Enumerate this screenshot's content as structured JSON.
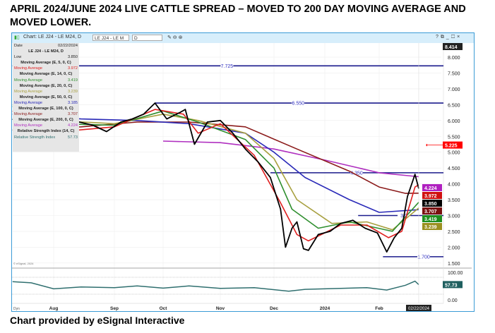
{
  "title": "APRIL 2024/JUNE 2024 LIVE CATTLE SPREAD –   MOVED TO 200 DAY MOVING AVERAGE AND MOVED LOWER.",
  "footer": "Chart provided by eSignal Interactive",
  "window": {
    "chart_label": "Chart: LE J24 - LE M24, D",
    "symbol_field": "LE J24 - LE M",
    "interval_field": "D",
    "controls": [
      "?",
      "⧉",
      "_",
      "☐",
      "×"
    ],
    "dyn_label": "Dyn",
    "copyright": "© eSignal, 2024"
  },
  "legend": {
    "date_label": "Date",
    "date_value": "02/22/2024",
    "symbol": "LE J24 - LE M24, D",
    "low_label": "Low",
    "low_value": "3.850",
    "studies": [
      {
        "header": "Moving Average (E, 5, 0, C)",
        "label": "Moving Average",
        "value": "3.972",
        "color": "#e02020"
      },
      {
        "header": "Moving Average (E, 14, 0, C)",
        "label": "Moving Average",
        "value": "3.419",
        "color": "#2f8f2f"
      },
      {
        "header": "Moving Average (E, 20, 0, C)",
        "label": "Moving Average",
        "value": "3.239",
        "color": "#a8a040"
      },
      {
        "header": "Moving Average (E, 50, 0, C)",
        "label": "Moving Average",
        "value": "3.185",
        "color": "#2a2ab8"
      },
      {
        "header": "Moving Average (E, 100, 0, C)",
        "label": "Moving Average",
        "value": "3.707",
        "color": "#8b1a1a"
      },
      {
        "header": "Moving Average (E, 200, 0, C)",
        "label": "Moving Average",
        "value": "4.224",
        "color": "#b030c0"
      },
      {
        "header": "Relative Strength Index (14, C)",
        "label": "Relative Strength Index",
        "value": "57.73",
        "color": "#2f6f6f"
      }
    ]
  },
  "chart_data": {
    "type": "line",
    "ylim": [
      1.4,
      8.6
    ],
    "rsi_ylim": [
      0,
      100
    ],
    "grid": true,
    "y_ticks": [
      "8.000",
      "7.500",
      "7.000",
      "6.500",
      "6.000",
      "5.500",
      "5.000",
      "4.500",
      "4.000",
      "3.500",
      "3.000",
      "2.500",
      "2.000",
      "1.500"
    ],
    "rsi_ticks": [
      "100.00",
      "0.00"
    ],
    "x_ticks": [
      "Aug",
      "Sep",
      "Oct",
      "Nov",
      "Dec",
      "2024",
      "Feb"
    ],
    "last_date_label": "02/22/2024",
    "top_tag": "8.414",
    "price": {
      "color": "#000000",
      "x": [
        "2023-07-10",
        "2023-07-17",
        "2023-07-24",
        "2023-07-31",
        "2023-08-07",
        "2023-08-14",
        "2023-08-21",
        "2023-08-28",
        "2023-09-05",
        "2023-09-12",
        "2023-09-19",
        "2023-09-26",
        "2023-10-03",
        "2023-10-10",
        "2023-10-13",
        "2023-10-18",
        "2023-10-25",
        "2023-11-01",
        "2023-11-08",
        "2023-11-15",
        "2023-11-22",
        "2023-11-29",
        "2023-12-05",
        "2023-12-08",
        "2023-12-12",
        "2023-12-15",
        "2023-12-19",
        "2023-12-22",
        "2023-12-28",
        "2024-01-04",
        "2024-01-10",
        "2024-01-17",
        "2024-01-24",
        "2024-01-31",
        "2024-02-05",
        "2024-02-09",
        "2024-02-13",
        "2024-02-16",
        "2024-02-20",
        "2024-02-22"
      ],
      "y": [
        6.05,
        5.7,
        5.85,
        5.55,
        5.75,
        5.95,
        5.85,
        5.65,
        5.95,
        6.05,
        6.2,
        6.55,
        6.05,
        6.25,
        6.35,
        5.25,
        5.95,
        6.0,
        5.6,
        5.1,
        4.7,
        4.2,
        3.2,
        2.0,
        2.6,
        2.8,
        1.95,
        1.9,
        2.4,
        2.5,
        2.75,
        2.85,
        2.6,
        2.45,
        1.85,
        2.3,
        2.6,
        3.6,
        4.3,
        3.85
      ]
    },
    "series": [
      {
        "name": "Moving Average (E, 5, 0, C)",
        "color": "#e02020",
        "x": [
          "2023-07-10",
          "2023-07-25",
          "2023-08-05",
          "2023-09-01",
          "2023-09-26",
          "2023-10-12",
          "2023-10-20",
          "2023-11-01",
          "2023-11-20",
          "2023-12-05",
          "2023-12-15",
          "2023-12-22",
          "2024-01-10",
          "2024-01-25",
          "2024-02-06",
          "2024-02-13",
          "2024-02-20",
          "2024-02-22"
        ],
        "y": [
          6.3,
          5.8,
          5.65,
          5.8,
          6.35,
          6.2,
          5.6,
          5.9,
          4.9,
          3.4,
          2.4,
          2.2,
          2.7,
          2.7,
          2.3,
          2.5,
          3.9,
          3.972
        ]
      },
      {
        "name": "Moving Average (E, 14, 0, C)",
        "color": "#2f8f2f",
        "x": [
          "2023-07-10",
          "2023-08-01",
          "2023-09-01",
          "2023-10-01",
          "2023-10-20",
          "2023-11-15",
          "2023-12-01",
          "2023-12-12",
          "2023-12-28",
          "2024-01-15",
          "2024-02-08",
          "2024-02-22"
        ],
        "y": [
          6.45,
          5.9,
          5.85,
          6.3,
          5.95,
          5.4,
          4.5,
          3.2,
          2.6,
          2.8,
          2.5,
          3.419
        ]
      },
      {
        "name": "Moving Average (E, 20, 0, C)",
        "color": "#a8a040",
        "x": [
          "2023-07-10",
          "2023-08-01",
          "2023-09-01",
          "2023-10-01",
          "2023-10-20",
          "2023-11-15",
          "2023-12-01",
          "2023-12-15",
          "2024-01-05",
          "2024-01-25",
          "2024-02-08",
          "2024-02-22"
        ],
        "y": [
          6.5,
          6.0,
          5.9,
          6.2,
          6.0,
          5.6,
          4.8,
          3.5,
          2.75,
          2.8,
          2.55,
          3.239
        ]
      },
      {
        "name": "Moving Average (E, 50, 0, C)",
        "color": "#2a2ab8",
        "x": [
          "2023-07-10",
          "2023-08-15",
          "2023-09-15",
          "2023-10-15",
          "2023-11-15",
          "2023-12-01",
          "2023-12-20",
          "2024-01-15",
          "2024-02-01",
          "2024-02-22"
        ],
        "y": [
          6.2,
          6.05,
          6.0,
          5.9,
          5.6,
          5.0,
          4.2,
          3.5,
          3.1,
          3.185
        ]
      },
      {
        "name": "Moving Average (E, 100, 0, C)",
        "color": "#8b1a1a",
        "x": [
          "2023-07-10",
          "2023-08-15",
          "2023-09-15",
          "2023-10-15",
          "2023-11-15",
          "2023-12-15",
          "2024-01-15",
          "2024-02-01",
          "2024-02-15",
          "2024-02-22"
        ],
        "y": [
          5.7,
          5.8,
          5.95,
          5.95,
          5.8,
          5.1,
          4.4,
          3.9,
          3.7,
          3.707
        ]
      },
      {
        "name": "Moving Average (E, 200, 0, C)",
        "color": "#b030c0",
        "x": [
          "2023-10-01",
          "2023-11-01",
          "2023-12-01",
          "2024-01-01",
          "2024-02-01",
          "2024-02-22"
        ],
        "y": [
          5.35,
          5.3,
          5.1,
          4.75,
          4.35,
          4.224
        ]
      }
    ],
    "rsi": {
      "name": "Relative Strength Index (14, C)",
      "color": "#2f6f6f",
      "x": [
        "2023-07-10",
        "2023-07-20",
        "2023-08-01",
        "2023-08-15",
        "2023-09-01",
        "2023-09-15",
        "2023-10-01",
        "2023-10-15",
        "2023-11-01",
        "2023-11-20",
        "2023-12-10",
        "2023-12-20",
        "2024-01-10",
        "2024-01-25",
        "2024-02-05",
        "2024-02-15",
        "2024-02-20",
        "2024-02-22"
      ],
      "y": [
        70,
        65,
        40,
        48,
        45,
        52,
        43,
        52,
        42,
        45,
        30,
        38,
        42,
        45,
        35,
        55,
        72,
        57.73
      ]
    },
    "horizontal_lines": [
      {
        "value": 7.725,
        "label": "7.725",
        "start": "2023-07-10",
        "color": "#1a1a8c"
      },
      {
        "value": 6.55,
        "label": "6.550",
        "start": "2023-09-26",
        "color": "#1a1a8c"
      },
      {
        "value": 4.35,
        "label": "4.350",
        "start": "2023-11-29",
        "color": "#1a1a8c"
      },
      {
        "value": 3.0,
        "label": "3.0",
        "start": "2024-01-20",
        "color": "#1a1a8c"
      },
      {
        "value": 1.7,
        "label": "1.700",
        "start": "2024-02-03",
        "color": "#1a1a8c"
      }
    ],
    "alert_line": {
      "value": 5.225,
      "label": "5.225",
      "color": "#ff0000"
    },
    "value_tags": [
      {
        "value": 4.224,
        "label": "4.224",
        "color": "#b020c0"
      },
      {
        "value": 3.972,
        "label": "3.972",
        "color": "#d01010"
      },
      {
        "value": 3.707,
        "label": "3.707",
        "color": "#7a1010"
      },
      {
        "value": 3.85,
        "label": "3.850",
        "color": "#000000"
      },
      {
        "value": 3.419,
        "label": "3.419",
        "color": "#1f8f1f"
      },
      {
        "value": 3.239,
        "label": "3.239",
        "color": "#9a9020"
      }
    ],
    "rsi_tag": {
      "value": 57.73,
      "label": "57.73",
      "color": "#1f5f5f"
    }
  }
}
